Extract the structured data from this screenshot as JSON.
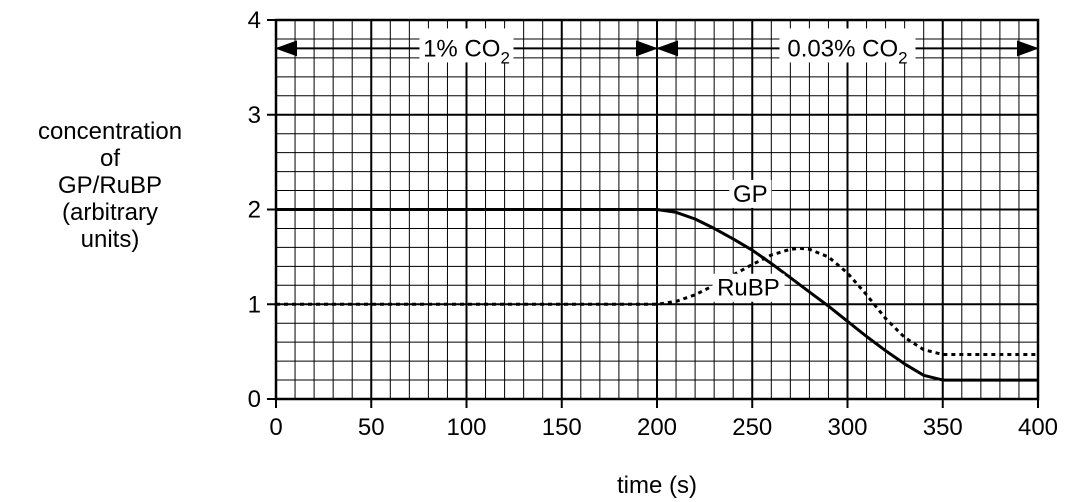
{
  "chart_data": {
    "type": "line",
    "xlabel": "time (s)",
    "ylabel_lines": [
      "concentration",
      "of",
      "GP/RuBP",
      "(arbitrary",
      "units)"
    ],
    "xlim": [
      0,
      400
    ],
    "ylim": [
      0,
      4
    ],
    "x_ticks": [
      0,
      50,
      100,
      150,
      200,
      250,
      300,
      350,
      400
    ],
    "y_ticks": [
      0,
      1,
      2,
      3,
      4
    ],
    "grid": true,
    "series": [
      {
        "name": "GP",
        "style": "solid",
        "x": [
          0,
          200,
          210,
          220,
          230,
          240,
          250,
          260,
          270,
          280,
          290,
          300,
          310,
          320,
          330,
          340,
          350,
          400
        ],
        "y": [
          2.0,
          2.0,
          1.97,
          1.9,
          1.8,
          1.69,
          1.57,
          1.43,
          1.28,
          1.13,
          0.98,
          0.82,
          0.66,
          0.51,
          0.37,
          0.25,
          0.2,
          0.2
        ]
      },
      {
        "name": "RuBP",
        "style": "dotted",
        "x": [
          0,
          200,
          210,
          220,
          230,
          240,
          250,
          260,
          270,
          275,
          280,
          290,
          300,
          310,
          320,
          330,
          340,
          350,
          400
        ],
        "y": [
          1.0,
          1.0,
          1.03,
          1.1,
          1.2,
          1.31,
          1.42,
          1.52,
          1.58,
          1.59,
          1.58,
          1.5,
          1.33,
          1.1,
          0.85,
          0.65,
          0.52,
          0.47,
          0.47
        ]
      }
    ],
    "annotations": [
      {
        "text": "1% CO",
        "sub": "2",
        "x_from": 0,
        "x_to": 200,
        "y": 3.7
      },
      {
        "text": "0.03% CO",
        "sub": "2",
        "x_from": 200,
        "x_to": 400,
        "y": 3.7
      }
    ]
  }
}
